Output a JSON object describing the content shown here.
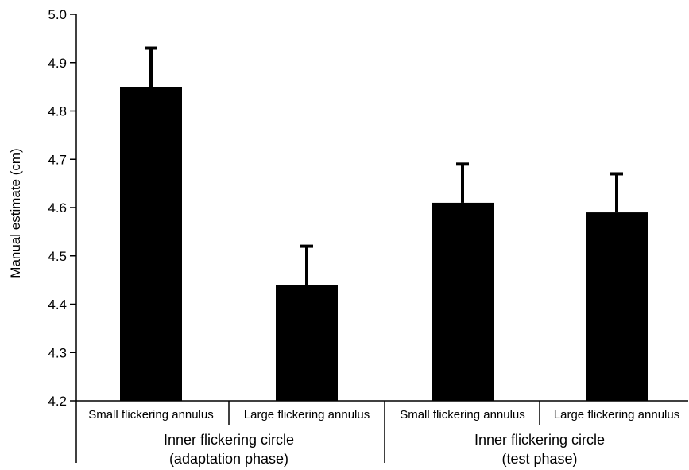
{
  "chart_data": {
    "type": "bar",
    "title": "",
    "ylabel": "Manual estimate (cm)",
    "xlabel": "",
    "ylim": [
      4.2,
      5.0
    ],
    "yticks": [
      "4.2",
      "4.3",
      "4.4",
      "4.5",
      "4.6",
      "4.7",
      "4.8",
      "4.9",
      "5.0"
    ],
    "grid": false,
    "categories": [
      "Small flickering annulus",
      "Large flickering annulus",
      "Small flickering annulus",
      "Large flickering annulus"
    ],
    "values": [
      4.85,
      4.44,
      4.61,
      4.59
    ],
    "error_upper": [
      0.08,
      0.08,
      0.08,
      0.08
    ],
    "bar_color": "#000000",
    "groups": [
      {
        "line1": "Inner flickering circle",
        "line2": "(adaptation phase)",
        "categories": [
          0,
          1
        ]
      },
      {
        "line1": "Inner flickering circle",
        "line2": "(test phase)",
        "categories": [
          2,
          3
        ]
      }
    ]
  }
}
